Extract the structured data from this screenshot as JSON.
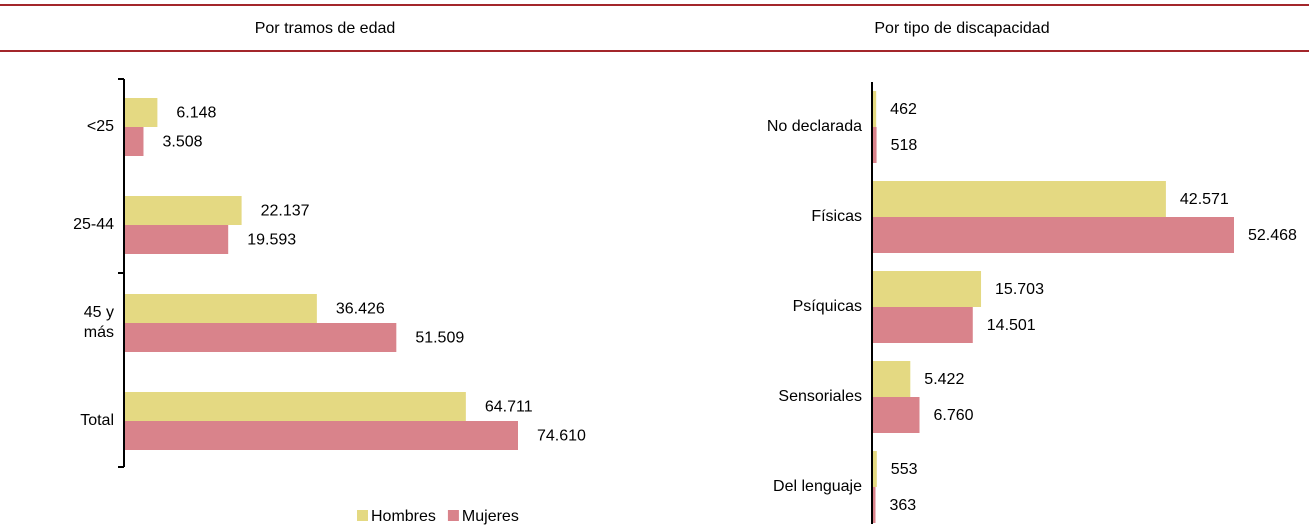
{
  "chart_data": [
    {
      "type": "bar",
      "orientation": "horizontal",
      "title": "Por tramos de edad",
      "categories": [
        "<25",
        "25-44",
        "45 y más",
        "Total"
      ],
      "series": [
        {
          "name": "Hombres",
          "color": "#e4d982",
          "values": [
            6148,
            22137,
            36426,
            64711
          ],
          "value_labels": [
            "6.148",
            "22.137",
            "36.426",
            "64.711"
          ]
        },
        {
          "name": "Mujeres",
          "color": "#d9838b",
          "values": [
            3508,
            19593,
            51509,
            74610
          ],
          "value_labels": [
            "3.508",
            "19.593",
            "51.509",
            "74.610"
          ]
        }
      ],
      "legend": "bottom"
    },
    {
      "type": "bar",
      "orientation": "horizontal",
      "title": "Por tipo de discapacidad",
      "categories": [
        "No declarada",
        "Físicas",
        "Psíquicas",
        "Sensoriales",
        "Del lenguaje"
      ],
      "series": [
        {
          "name": "Hombres",
          "color": "#e4d982",
          "values": [
            462,
            42571,
            15703,
            5422,
            553
          ],
          "value_labels": [
            "462",
            "42.571",
            "15.703",
            "5.422",
            "553"
          ]
        },
        {
          "name": "Mujeres",
          "color": "#d9838b",
          "values": [
            518,
            52468,
            14501,
            6760,
            363
          ],
          "value_labels": [
            "518",
            "52.468",
            "14.501",
            "6.760",
            "363"
          ]
        }
      ]
    }
  ]
}
